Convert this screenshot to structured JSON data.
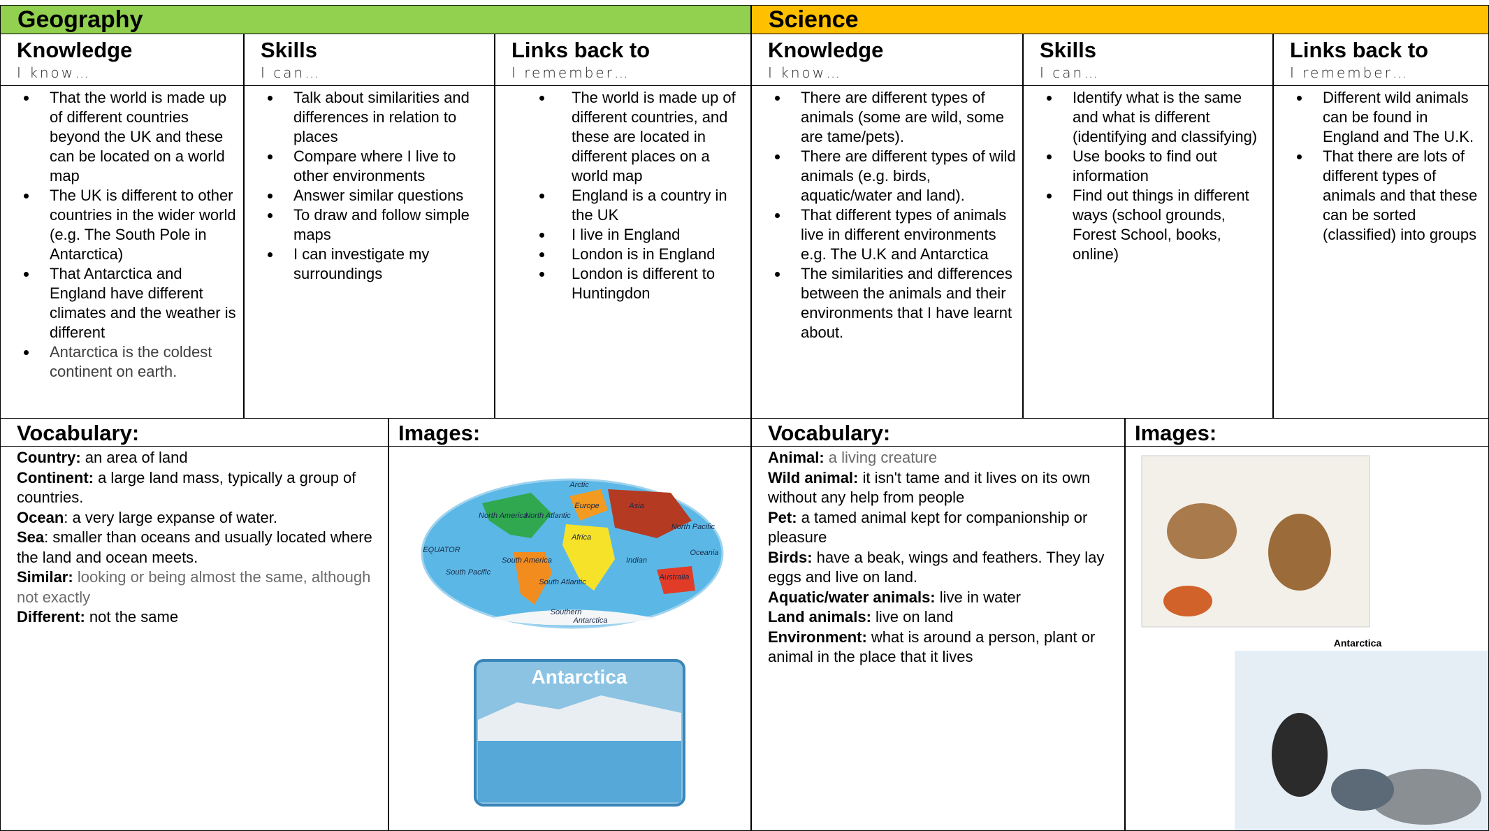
{
  "geography": {
    "title": "Geography",
    "color": "#92d050",
    "columns": [
      {
        "heading": "Knowledge",
        "prompt": "I know…",
        "items": [
          {
            "text": "That the world is made up of different countries beyond the UK and these can be located on a world map"
          },
          {
            "text": "The UK is different to other countries in the wider world (e.g. The South Pole in Antarctica)"
          },
          {
            "text": "That Antarctica and England have different climates and the weather is different"
          },
          {
            "text": "Antarctica is the coldest continent on earth.",
            "color": "#404040"
          }
        ]
      },
      {
        "heading": "Skills",
        "prompt": "I can…",
        "items": [
          {
            "text": "Talk about similarities and differences in relation to places"
          },
          {
            "text": "Compare where I live to other environments"
          },
          {
            "text": "Answer similar questions"
          },
          {
            "text": "To draw and follow simple maps"
          },
          {
            "text": "I can investigate my surroundings"
          }
        ]
      },
      {
        "heading": "Links back to",
        "prompt": "I remember…",
        "items": [
          {
            "text": "The world is made up of different countries, and these are located in different places on a world map"
          },
          {
            "text": "England is a country in the UK"
          },
          {
            "text": "I live in England"
          },
          {
            "text": "London is in England"
          },
          {
            "text": "London is different to Huntingdon"
          }
        ]
      }
    ],
    "vocabulary": {
      "heading": "Vocabulary:",
      "entries": [
        {
          "term": "Country:",
          "definition": " an area of land"
        },
        {
          "term": "Continent:",
          "definition": " a large land mass, typically a group of countries."
        },
        {
          "term": "Ocean",
          "definition": ": a very large expanse of water."
        },
        {
          "term": "Sea",
          "definition": ": smaller than oceans and usually located where the land and ocean meets."
        },
        {
          "term": "Similar:",
          "definition": " looking or being almost the same, although not exactly",
          "color": "#6b6b6b"
        },
        {
          "term": "Different:",
          "definition": " not the same"
        }
      ]
    },
    "images": {
      "heading": "Images:",
      "map_labels": [
        "Arctic",
        "North America",
        "Europe",
        "Asia",
        "North Atlantic",
        "North Pacific",
        "Africa",
        "EQUATOR",
        "South America",
        "Indian",
        "Oceania",
        "Australia",
        "South Pacific",
        "South Atlantic",
        "Southern",
        "Antarctica"
      ],
      "photo_title": "Antarctica"
    }
  },
  "science": {
    "title": "Science",
    "color": "#ffc000",
    "columns": [
      {
        "heading": "Knowledge",
        "prompt": "I know…",
        "items": [
          {
            "text": "There are different types of animals (some are wild, some are tame/pets)."
          },
          {
            "text": "There are different types of wild animals (e.g. birds, aquatic/water and land)."
          },
          {
            "text": "That different types of animals live in different environments e.g. The U.K and Antarctica"
          },
          {
            "text": "The similarities and differences between the animals and their environments that I have learnt about."
          }
        ]
      },
      {
        "heading": "Skills",
        "prompt": "I can…",
        "items": [
          {
            "text": "Identify what is the same and what is different (identifying and classifying)"
          },
          {
            "text": "Use books to find out information"
          },
          {
            "text": "Find out things in different ways (school grounds, Forest School, books, online)"
          }
        ]
      },
      {
        "heading": "Links back to",
        "prompt": "I remember…",
        "items": [
          {
            "text": "Different wild animals can be found in England and The U.K."
          },
          {
            "text": "That there are lots of different types of animals and that these can be sorted (classified) into groups"
          }
        ]
      }
    ],
    "vocabulary": {
      "heading": "Vocabulary:",
      "entries": [
        {
          "term": "Animal:",
          "definition": " a living creature",
          "color": "#6b6b6b"
        },
        {
          "term": "Wild animal:",
          "definition": " it isn't tame and it lives on its own without any help from people"
        },
        {
          "term": "Pet:",
          "definition": " a tamed animal kept for companionship or pleasure"
        },
        {
          "term": "Birds:",
          "definition": " have a beak, wings and feathers. They lay eggs and live on land."
        },
        {
          "term": "Aquatic/water animals:",
          "definition": " live in water"
        },
        {
          "term": "Land animals:",
          "definition": " live on land"
        },
        {
          "term": "Environment:",
          "definition": " what is around a person, plant or animal in the place that it lives"
        }
      ]
    },
    "images": {
      "heading": "Images:",
      "poster_title": "Antarctica"
    }
  }
}
